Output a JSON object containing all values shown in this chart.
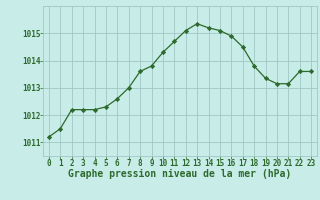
{
  "x": [
    0,
    1,
    2,
    3,
    4,
    5,
    6,
    7,
    8,
    9,
    10,
    11,
    12,
    13,
    14,
    15,
    16,
    17,
    18,
    19,
    20,
    21,
    22,
    23
  ],
  "y": [
    1011.2,
    1011.5,
    1012.2,
    1012.2,
    1012.2,
    1012.3,
    1012.6,
    1013.0,
    1013.6,
    1013.8,
    1014.3,
    1014.7,
    1015.1,
    1015.35,
    1015.2,
    1015.1,
    1014.9,
    1014.5,
    1013.8,
    1013.35,
    1013.15,
    1013.15,
    1013.6,
    1013.6
  ],
  "line_color": "#2d6a2d",
  "marker": "D",
  "marker_size": 2.2,
  "background_color": "#c8ece8",
  "grid_color": "#a0c8c4",
  "xlabel": "Graphe pression niveau de la mer (hPa)",
  "xlabel_fontsize": 7,
  "yticks": [
    1011,
    1012,
    1013,
    1014,
    1015
  ],
  "ylim": [
    1010.5,
    1016.0
  ],
  "xlim": [
    -0.5,
    23.5
  ],
  "xticks": [
    0,
    1,
    2,
    3,
    4,
    5,
    6,
    7,
    8,
    9,
    10,
    11,
    12,
    13,
    14,
    15,
    16,
    17,
    18,
    19,
    20,
    21,
    22,
    23
  ],
  "tick_fontsize": 5.5,
  "tick_color": "#2d6a2d",
  "linewidth": 0.9
}
